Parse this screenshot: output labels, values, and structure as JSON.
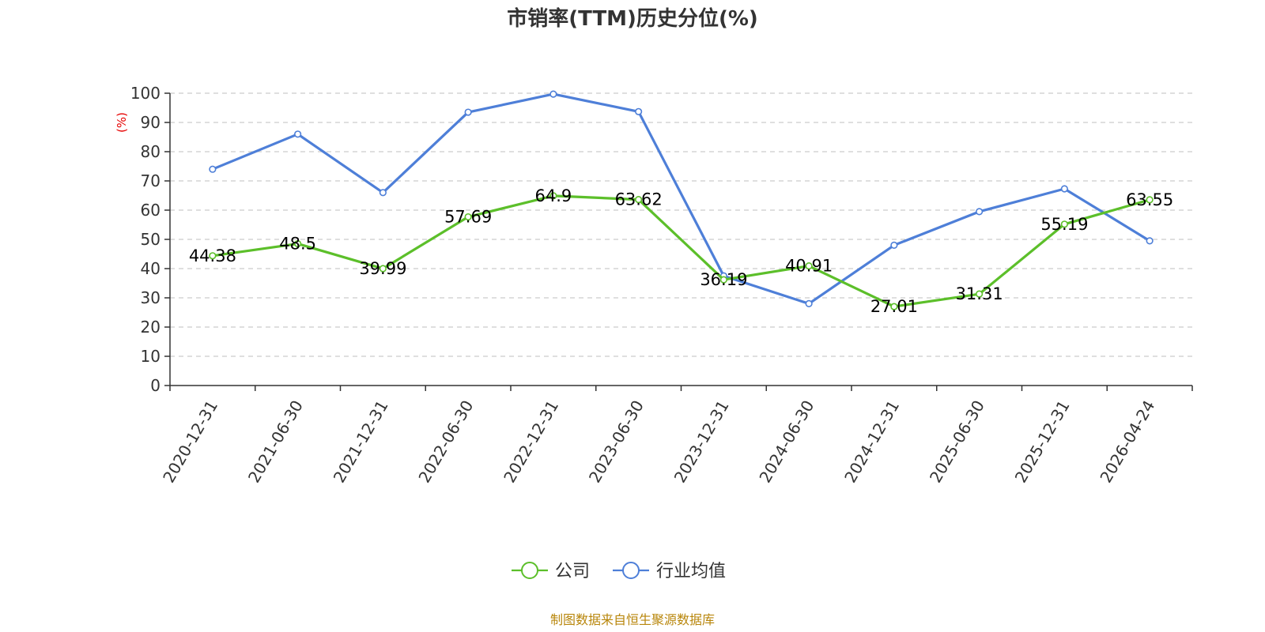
{
  "chart_data": {
    "type": "line",
    "title": "市销率(TTM)历史分位(%)",
    "ylabel": "(%)",
    "ylim": [
      0,
      100
    ],
    "yticks": [
      0,
      10,
      20,
      30,
      40,
      50,
      60,
      70,
      80,
      90,
      100
    ],
    "categories": [
      "2020-12-31",
      "2021-06-30",
      "2021-12-31",
      "2022-06-30",
      "2022-12-31",
      "2023-06-30",
      "2023-12-31",
      "2024-06-30",
      "2024-12-31",
      "2025-06-30",
      "2025-12-31",
      "2026-04-24"
    ],
    "grid": "horizontal dashed",
    "legend_position": "bottom",
    "series": [
      {
        "name": "公司",
        "color": "#5cbf2a",
        "values": [
          44.38,
          48.5,
          39.99,
          57.69,
          64.9,
          63.62,
          36.19,
          40.91,
          27.01,
          31.31,
          55.19,
          63.55
        ],
        "labels": [
          "44.38",
          "48.5",
          "39.99",
          "57.69",
          "64.9",
          "63.62",
          "36.19",
          "40.91",
          "27.01",
          "31.31",
          "55.19",
          "63.55"
        ]
      },
      {
        "name": "行业均值",
        "color": "#4e7fd8",
        "values": [
          74,
          86,
          66,
          93.5,
          99.7,
          93.7,
          37.5,
          28,
          48,
          59.5,
          67.3,
          49.5
        ]
      }
    ]
  },
  "source_note": "制图数据来自恒生聚源数据库"
}
